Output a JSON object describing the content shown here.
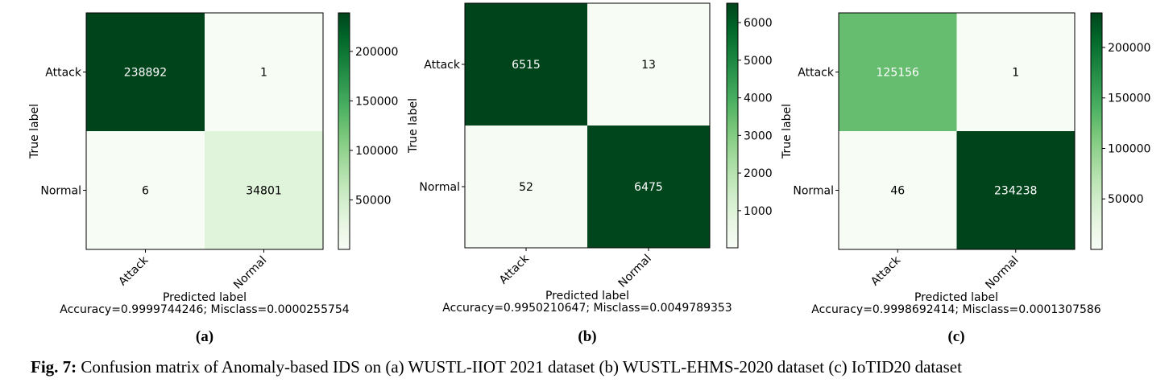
{
  "chart_data": [
    {
      "type": "heatmap",
      "panel_label": "(a)",
      "row_labels": [
        "Attack",
        "Normal"
      ],
      "col_labels": [
        "Attack",
        "Normal"
      ],
      "values": [
        [
          238892,
          1
        ],
        [
          6,
          34801
        ]
      ],
      "ylabel": "True label",
      "xlabel": "Predicted label",
      "metrics": "Accuracy=0.9999744246; Misclass=0.0000255754",
      "colorbar": {
        "colormap": "Greens",
        "min": 1,
        "max": 238892,
        "ticks": [
          50000,
          100000,
          150000,
          200000
        ]
      }
    },
    {
      "type": "heatmap",
      "panel_label": "(b)",
      "row_labels": [
        "Attack",
        "Normal"
      ],
      "col_labels": [
        "Attack",
        "Normal"
      ],
      "values": [
        [
          6515,
          13
        ],
        [
          52,
          6475
        ]
      ],
      "ylabel": "True label",
      "xlabel": "Predicted label",
      "metrics": "Accuracy=0.9950210647; Misclass=0.0049789353",
      "colorbar": {
        "colormap": "Greens",
        "min": 13,
        "max": 6515,
        "ticks": [
          1000,
          2000,
          3000,
          4000,
          5000,
          6000
        ]
      }
    },
    {
      "type": "heatmap",
      "panel_label": "(c)",
      "row_labels": [
        "Attack",
        "Normal"
      ],
      "col_labels": [
        "Attack",
        "Normal"
      ],
      "values": [
        [
          125156,
          1
        ],
        [
          46,
          234238
        ]
      ],
      "ylabel": "True label",
      "xlabel": "Predicted label",
      "metrics": "Accuracy=0.9998692414; Misclass=0.0001307586",
      "colorbar": {
        "colormap": "Greens",
        "min": 1,
        "max": 234238,
        "ticks": [
          50000,
          100000,
          150000,
          200000
        ]
      }
    }
  ],
  "caption": {
    "prefix": "Fig. 7:",
    "text": " Confusion matrix of Anomaly-based IDS on (a) WUSTL-IIOT 2021 dataset (b) WUSTL-EHMS-2020 dataset (c) IoTID20 dataset"
  }
}
